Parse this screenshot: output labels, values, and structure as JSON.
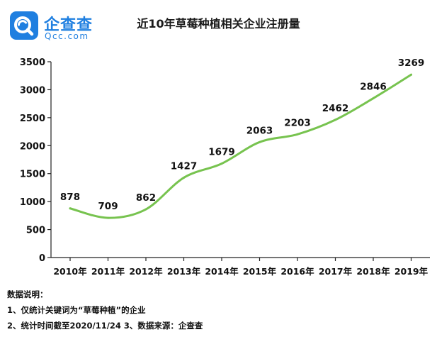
{
  "brand": {
    "name": "企查查",
    "domain": "Qcc.com"
  },
  "chart_data": {
    "type": "line",
    "title": "近10年草莓种植相关企业注册量",
    "xlabel": "",
    "ylabel": "",
    "categories": [
      "2010年",
      "2011年",
      "2012年",
      "2013年",
      "2014年",
      "2015年",
      "2016年",
      "2017年",
      "2018年",
      "2019年"
    ],
    "series": [
      {
        "values": [
          878,
          709,
          862,
          1427,
          1679,
          2063,
          2203,
          2462,
          2846,
          3269
        ]
      }
    ],
    "ylim": [
      0,
      3500
    ],
    "yticks": [
      0,
      500,
      1000,
      1500,
      2000,
      2500,
      3000,
      3500
    ],
    "data_labels": true,
    "grid": false,
    "line_color": "#77c34f"
  },
  "notes": {
    "heading": "数据说明：",
    "line1": "1、仅统计关键词为“草莓种植”的企业",
    "line2": "2、统计时间截至2020/11/24  3、数据来源：企查查"
  }
}
